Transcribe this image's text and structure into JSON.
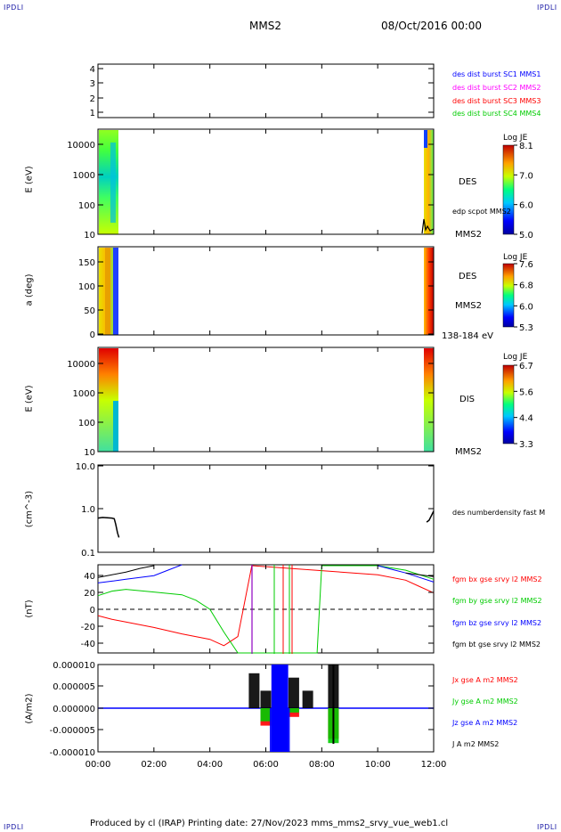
{
  "header": {
    "corner_tl": "IPDLI",
    "corner_tr": "IPDLI",
    "corner_bl": "IPDLI",
    "corner_br": "IPDLI",
    "spacecraft": "MMS2",
    "datetime": "08/Oct/2016 00:00"
  },
  "x_axis": {
    "ticks": [
      "00:00",
      "02:00",
      "04:00",
      "06:00",
      "08:00",
      "10:00",
      "12:00"
    ]
  },
  "panels": {
    "p1": {
      "yticks": [
        "4",
        "3",
        "2",
        "1"
      ],
      "legend": [
        {
          "label": "des dist burst SC1 MMS1",
          "color": "#0000ff"
        },
        {
          "label": "des dist burst SC2 MMS2",
          "color": "#ff00ff"
        },
        {
          "label": "des dist burst SC3 MMS3",
          "color": "#ff0000"
        },
        {
          "label": "des dist burst SC4 MMS4",
          "color": "#00cc00"
        }
      ]
    },
    "p2": {
      "ylabel": "E (eV)",
      "yticks": [
        "10000",
        "1000",
        "100",
        "10"
      ],
      "label_species": "DES",
      "label_overlay": "edp scpot MMS2",
      "label_sc": "MMS2",
      "colorbar": {
        "title": "Log JE",
        "ticks": [
          "8.1",
          "7.0",
          "6.0",
          "5.0"
        ]
      }
    },
    "p3": {
      "ylabel": "a (deg)",
      "yticks": [
        "150",
        "100",
        "50",
        "0"
      ],
      "label_species": "DES",
      "label_sc": "MMS2",
      "label_range": "138-184 eV",
      "colorbar": {
        "title": "Log JE",
        "ticks": [
          "7.6",
          "6.8",
          "6.0",
          "5.3"
        ]
      }
    },
    "p4": {
      "ylabel": "E (eV)",
      "yticks": [
        "10000",
        "1000",
        "100",
        "10"
      ],
      "label_species": "DIS",
      "label_sc": "MMS2",
      "colorbar": {
        "title": "Log JE",
        "ticks": [
          "6.7",
          "5.6",
          "4.4",
          "3.3"
        ]
      }
    },
    "p5": {
      "ylabel": "(cm^-3)",
      "yticks": [
        "10.0",
        "1.0",
        "0.1"
      ],
      "legend": "des numberdensity fast M"
    },
    "p6": {
      "ylabel": "(nT)",
      "yticks": [
        "40",
        "20",
        "0",
        "-20",
        "-40"
      ],
      "legend": [
        {
          "label": "fgm bx gse srvy l2 MMS2",
          "color": "#ff0000"
        },
        {
          "label": "fgm by gse srvy l2 MMS2",
          "color": "#00cc00"
        },
        {
          "label": "fgm bz gse srvy l2 MMS2",
          "color": "#0000ff"
        },
        {
          "label": "fgm bt gse srvy l2 MMS2",
          "color": "#000000"
        }
      ]
    },
    "p7": {
      "ylabel": "(A/m2)",
      "yticks": [
        "0.000010",
        "0.000005",
        "0.000000",
        "-0.000005",
        "-0.000010"
      ],
      "legend": [
        {
          "label": "Jx gse A m2 MMS2",
          "color": "#ff0000"
        },
        {
          "label": "Jy gse A m2 MMS2",
          "color": "#00cc00"
        },
        {
          "label": "Jz gse A m2 MMS2",
          "color": "#0000ff"
        },
        {
          "label": "J A m2 MMS2",
          "color": "#000000"
        }
      ]
    }
  },
  "footer": "Produced by cl (IRAP)   Printing date: 27/Nov/2023   mms_mms2_srvy_vue_web1.cl",
  "chart_data": [
    {
      "type": "line",
      "title": "",
      "ylabel": "(cm^-3)",
      "yscale": "log",
      "ylim": [
        0.1,
        10.0
      ],
      "xlim": [
        "00:00",
        "12:00"
      ],
      "series": [
        {
          "name": "des numberdensity fast M",
          "x": [
            "00:00",
            "00:10",
            "00:20",
            "00:30",
            "00:35",
            "00:38",
            "00:42",
            "00:45",
            "11:45",
            "11:50",
            "11:55",
            "12:00"
          ],
          "y": [
            0.62,
            0.64,
            0.63,
            0.62,
            0.6,
            0.45,
            0.28,
            0.22,
            0.5,
            0.55,
            0.7,
            0.9
          ]
        }
      ]
    },
    {
      "type": "line",
      "title": "",
      "ylabel": "(nT)",
      "ylim": [
        -48,
        50
      ],
      "xlim": [
        "00:00",
        "12:00"
      ],
      "series": [
        {
          "name": "fgm bx gse srvy l2 MMS2",
          "x": [
            "00:00",
            "00:30",
            "01:00",
            "02:00",
            "03:00",
            "04:00",
            "04:30",
            "05:00",
            "05:30",
            "10:00",
            "11:00",
            "11:30",
            "12:00"
          ],
          "y": [
            -7,
            -11,
            -14,
            -20,
            -27,
            -33,
            -40,
            -30,
            48,
            38,
            32,
            25,
            18
          ]
        },
        {
          "name": "fgm by gse srvy l2 MMS2",
          "x": [
            "00:00",
            "00:30",
            "01:00",
            "02:00",
            "03:00",
            "03:30",
            "04:00",
            "04:30",
            "05:00",
            "07:50",
            "08:00",
            "10:00",
            "11:00",
            "11:30",
            "12:00"
          ],
          "y": [
            15,
            20,
            22,
            19,
            16,
            10,
            0,
            -25,
            -48,
            -48,
            48,
            48,
            43,
            38,
            33
          ]
        },
        {
          "name": "fgm bz gse srvy l2 MMS2",
          "x": [
            "00:00",
            "00:30",
            "01:00",
            "02:00",
            "02:30",
            "03:00",
            "10:00",
            "10:30",
            "11:00",
            "11:30",
            "12:00"
          ],
          "y": [
            29,
            31,
            33,
            37,
            43,
            49,
            48,
            44,
            40,
            35,
            30
          ]
        },
        {
          "name": "fgm bt gse srvy l2 MMS2",
          "x": [
            "00:00",
            "00:30",
            "01:00",
            "01:30",
            "02:00",
            "11:00",
            "11:30",
            "12:00"
          ],
          "y": [
            35,
            38,
            41,
            45,
            48,
            40,
            38,
            36
          ]
        }
      ]
    },
    {
      "type": "line",
      "title": "",
      "ylabel": "(A/m2)",
      "ylim": [
        -1e-05,
        1e-05
      ],
      "xlim": [
        "00:00",
        "12:00"
      ],
      "series": [
        {
          "name": "Jx gse A m2 MMS2",
          "x": [
            "00:00",
            "05:30",
            "06:00",
            "06:30",
            "07:00",
            "08:25",
            "12:00"
          ],
          "y": [
            0,
            0,
            -4e-06,
            -7e-06,
            -2e-06,
            -7e-06,
            0
          ]
        },
        {
          "name": "Jy gse A m2 MMS2",
          "x": [
            "00:00",
            "05:30",
            "06:00",
            "06:30",
            "07:00",
            "08:25",
            "12:00"
          ],
          "y": [
            0,
            0,
            -3e-06,
            -5e-06,
            -1e-06,
            -8e-06,
            0
          ]
        },
        {
          "name": "Jz gse A m2 MMS2",
          "x": [
            "00:00",
            "06:00",
            "06:20",
            "06:40",
            "07:00",
            "12:00"
          ],
          "y": [
            0,
            0,
            -1e-05,
            -1e-05,
            0,
            0
          ]
        },
        {
          "name": "J A m2 MMS2",
          "x": [
            "00:00",
            "05:35",
            "06:00",
            "06:30",
            "07:00",
            "07:30",
            "08:25",
            "12:00"
          ],
          "y": [
            0,
            8e-06,
            4e-06,
            1e-05,
            7e-06,
            4e-06,
            1e-05,
            0
          ]
        }
      ]
    }
  ]
}
